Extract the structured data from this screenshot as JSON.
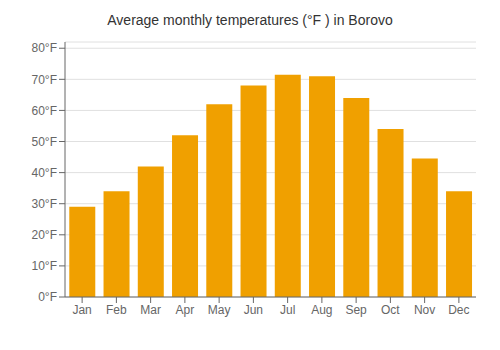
{
  "chart_data": {
    "type": "bar",
    "title": "Average monthly temperatures (°F ) in Borovo",
    "categories": [
      "Jan",
      "Feb",
      "Mar",
      "Apr",
      "May",
      "Jun",
      "Jul",
      "Aug",
      "Sep",
      "Oct",
      "Nov",
      "Dec"
    ],
    "values": [
      29,
      34,
      42,
      52,
      62,
      68,
      71.5,
      71,
      64,
      54,
      44.5,
      34
    ],
    "color": "#F0A000",
    "ylim": [
      0,
      82
    ],
    "yticks": [
      {
        "value": 0,
        "label": "0°F"
      },
      {
        "value": 10,
        "label": "10°F"
      },
      {
        "value": 20,
        "label": "20°F"
      },
      {
        "value": 30,
        "label": "30°F"
      },
      {
        "value": 40,
        "label": "40°F"
      },
      {
        "value": 50,
        "label": "50°F"
      },
      {
        "value": 60,
        "label": "60°F"
      },
      {
        "value": 70,
        "label": "70°F"
      },
      {
        "value": 80,
        "label": "80°F"
      }
    ],
    "grid": true
  }
}
